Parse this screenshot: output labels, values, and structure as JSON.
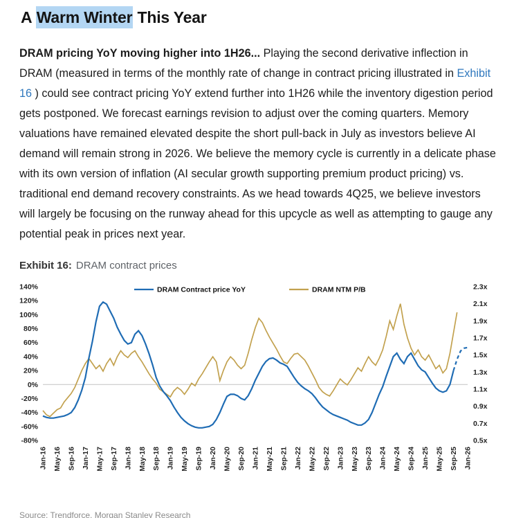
{
  "page": {
    "title": {
      "pre": "A ",
      "highlight": "Warm Winter",
      "post": " This Year"
    },
    "paragraph": {
      "lead_bold": "DRAM pricing YoY moving higher into 1H26...",
      "body_1": " Playing the second derivative inflection in DRAM (measured in terms of the monthly rate of change in contract pricing illustrated in ",
      "link": "Exhibit 16",
      "body_2": " ) could see contract pricing YoY extend further into 1H26 while the inventory digestion period gets postponed. We forecast earnings revision to adjust over the coming quarters. Memory valuations have remained elevated despite the short pull-back in July as investors believe AI demand will remain strong in 2026. We believe the memory cycle is currently in a delicate phase with its own version of inflation (AI secular growth supporting premium product pricing) vs. traditional end demand recovery constraints. As we head towards 4Q25, we believe investors will largely be focusing on the runway ahead for this upcycle as well as attempting to gauge any potential peak in prices next year."
    },
    "exhibit": {
      "label": "Exhibit 16:",
      "title": "DRAM contract prices"
    },
    "source": "Source: Trendforce, Morgan Stanley Research"
  },
  "chart_data": {
    "type": "line",
    "title": "DRAM contract prices",
    "legend_position": "top-center",
    "grid": "zero-line-only",
    "x_ticks": [
      "Jan-16",
      "May-16",
      "Sep-16",
      "Jan-17",
      "May-17",
      "Sep-17",
      "Jan-18",
      "May-18",
      "Sep-18",
      "Jan-19",
      "May-19",
      "Sep-19",
      "Jan-20",
      "May-20",
      "Sep-20",
      "Jan-21",
      "May-21",
      "Sep-21",
      "Jan-22",
      "May-22",
      "Sep-22",
      "Jan-23",
      "May-23",
      "Sep-23",
      "Jan-24",
      "May-24",
      "Sep-24",
      "Jan-25",
      "May-25",
      "Sep-25",
      "Jan-26"
    ],
    "x_tick_month_spacing": 4,
    "left_axis": {
      "min": -80,
      "max": 140,
      "step": 20,
      "format": "percent",
      "ticks": [
        "140%",
        "120%",
        "100%",
        "80%",
        "60%",
        "40%",
        "20%",
        "0%",
        "-20%",
        "-40%",
        "-60%",
        "-80%"
      ]
    },
    "right_axis": {
      "min": 0.5,
      "max": 2.3,
      "step": 0.2,
      "format": "x",
      "ticks": [
        "2.3x",
        "2.1x",
        "1.9x",
        "1.7x",
        "1.5x",
        "1.3x",
        "1.1x",
        "0.9x",
        "0.7x",
        "0.5x"
      ]
    },
    "series": [
      {
        "name": "DRAM Contract price YoY",
        "color": "#1f6cb4",
        "axis": "left",
        "unit": "%",
        "forecast_start_index": 116,
        "values": [
          -45,
          -47,
          -48,
          -48,
          -47,
          -46,
          -45,
          -43,
          -40,
          -33,
          -22,
          -8,
          10,
          38,
          62,
          90,
          112,
          118,
          115,
          105,
          95,
          82,
          72,
          63,
          58,
          60,
          72,
          77,
          70,
          58,
          44,
          28,
          10,
          -2,
          -10,
          -16,
          -23,
          -32,
          -40,
          -47,
          -52,
          -56,
          -59,
          -61,
          -62,
          -62,
          -61,
          -60,
          -57,
          -50,
          -40,
          -28,
          -17,
          -14,
          -14,
          -16,
          -20,
          -22,
          -16,
          -6,
          6,
          16,
          26,
          33,
          37,
          38,
          35,
          31,
          29,
          26,
          18,
          10,
          3,
          -2,
          -6,
          -9,
          -13,
          -19,
          -26,
          -32,
          -36,
          -40,
          -43,
          -45,
          -47,
          -49,
          -51,
          -54,
          -56,
          -58,
          -58,
          -55,
          -50,
          -40,
          -27,
          -14,
          -3,
          12,
          26,
          40,
          45,
          36,
          30,
          40,
          45,
          36,
          27,
          21,
          18,
          10,
          2,
          -5,
          -9,
          -11,
          -9,
          0,
          20,
          36,
          48,
          52,
          53
        ]
      },
      {
        "name": "DRAM NTM P/B",
        "color": "#c2a14e",
        "axis": "right",
        "unit": "x",
        "values": [
          0.85,
          0.8,
          0.78,
          0.82,
          0.86,
          0.88,
          0.95,
          1.0,
          1.05,
          1.12,
          1.22,
          1.32,
          1.4,
          1.46,
          1.4,
          1.34,
          1.38,
          1.31,
          1.4,
          1.46,
          1.38,
          1.48,
          1.55,
          1.5,
          1.47,
          1.52,
          1.55,
          1.48,
          1.42,
          1.35,
          1.28,
          1.22,
          1.17,
          1.1,
          1.07,
          1.04,
          1.01,
          1.08,
          1.12,
          1.09,
          1.04,
          1.1,
          1.17,
          1.14,
          1.22,
          1.28,
          1.35,
          1.42,
          1.48,
          1.42,
          1.2,
          1.32,
          1.42,
          1.48,
          1.44,
          1.38,
          1.34,
          1.38,
          1.52,
          1.68,
          1.82,
          1.93,
          1.88,
          1.79,
          1.71,
          1.64,
          1.57,
          1.49,
          1.42,
          1.4,
          1.46,
          1.51,
          1.52,
          1.48,
          1.44,
          1.37,
          1.29,
          1.21,
          1.12,
          1.07,
          1.04,
          1.02,
          1.08,
          1.15,
          1.22,
          1.18,
          1.15,
          1.21,
          1.28,
          1.35,
          1.31,
          1.4,
          1.48,
          1.42,
          1.38,
          1.46,
          1.56,
          1.72,
          1.9,
          1.8,
          1.96,
          2.1,
          1.86,
          1.7,
          1.58,
          1.5,
          1.56,
          1.48,
          1.44,
          1.5,
          1.42,
          1.34,
          1.38,
          1.29,
          1.34,
          1.52,
          1.76,
          2.0
        ]
      }
    ]
  }
}
